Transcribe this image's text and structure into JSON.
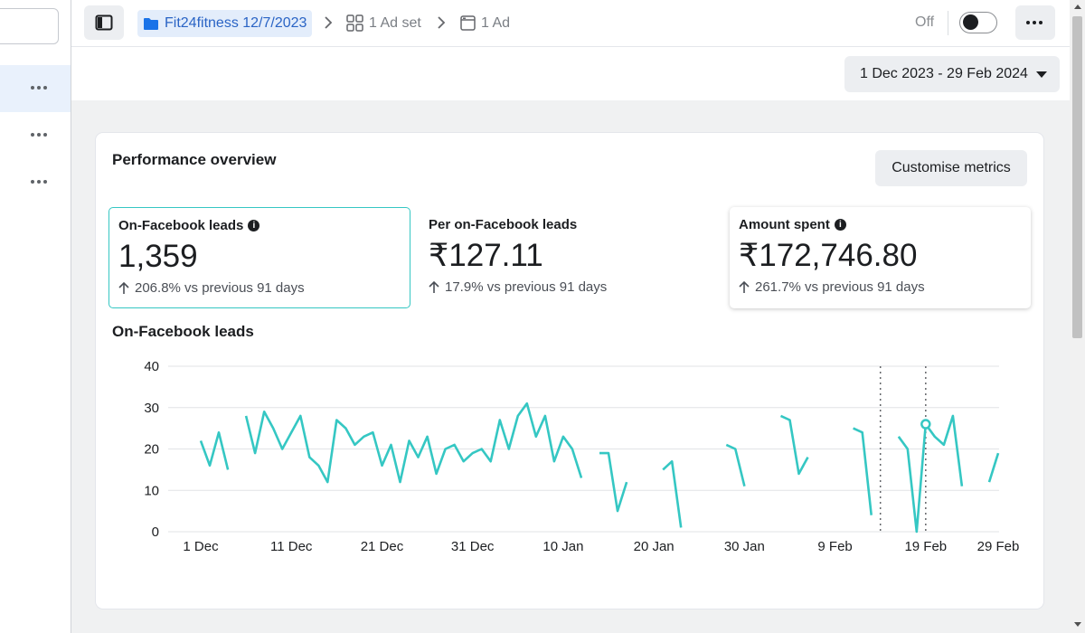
{
  "sidebar": {
    "rows": [
      {
        "active": true
      },
      {
        "active": false
      },
      {
        "active": false
      }
    ]
  },
  "topbar": {
    "campaign": "Fit24fitness 12/7/2023",
    "adset": "1 Ad set",
    "ad": "1 Ad",
    "status_label": "Off",
    "toggle_on": false
  },
  "date_range": "1 Dec 2023 - 29 Feb 2024",
  "card": {
    "title": "Performance overview",
    "customise_label": "Customise metrics",
    "metrics": [
      {
        "label": "On-Facebook leads",
        "value": "1,359",
        "change": "206.8% vs previous 91 days",
        "info": true
      },
      {
        "label": "Per on-Facebook leads",
        "value": "₹127.11",
        "change": "17.9% vs previous 91 days",
        "info": false
      },
      {
        "label": "Amount spent",
        "value": "₹172,746.80",
        "change": "261.7% vs previous 91 days",
        "info": true
      }
    ]
  },
  "colors": {
    "accent": "#35c7c3",
    "link": "#2a64c5"
  },
  "chart_data": {
    "type": "line",
    "title": "On-Facebook leads",
    "ylim": [
      0,
      40
    ],
    "yticks": [
      0,
      10,
      20,
      30,
      40
    ],
    "xtick_labels": [
      "1 Dec",
      "11 Dec",
      "21 Dec",
      "31 Dec",
      "10 Jan",
      "20 Jan",
      "30 Jan",
      "9 Feb",
      "19 Feb",
      "29 Feb"
    ],
    "grid": true,
    "series": [
      {
        "values": [
          22,
          16,
          24,
          15,
          null,
          28,
          19,
          29,
          25,
          20,
          24,
          28,
          18,
          16,
          12,
          27,
          25,
          21,
          23,
          24,
          16,
          21,
          12,
          22,
          18,
          23,
          14,
          20,
          21,
          17,
          19,
          20,
          17,
          27,
          20,
          28,
          31,
          23,
          28,
          17,
          23,
          20,
          13,
          null,
          19,
          19,
          5,
          12,
          null,
          null,
          null,
          15,
          17,
          1,
          null,
          null,
          null,
          null,
          21,
          20,
          11,
          null,
          null,
          null,
          28,
          27,
          14,
          18,
          null,
          null,
          null,
          null,
          25,
          24,
          4,
          null,
          null,
          23,
          20,
          0,
          26,
          23,
          21,
          28,
          11,
          null,
          null,
          12,
          19
        ]
      }
    ],
    "highlighted_dates": [
      "14 Feb",
      "19 Feb"
    ]
  }
}
